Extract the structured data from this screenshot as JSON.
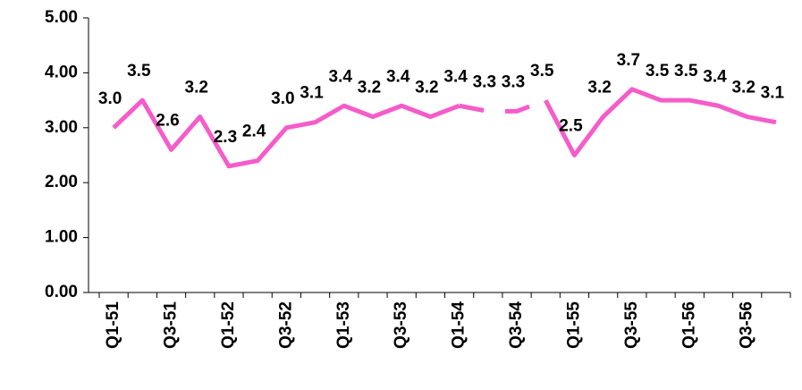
{
  "chart_data": {
    "type": "line",
    "categories": [
      "Q1-51",
      null,
      "Q3-51",
      null,
      "Q1-52",
      null,
      "Q3-52",
      null,
      "Q1-53",
      null,
      "Q3-53",
      null,
      "Q1-54",
      null,
      "Q3-54",
      null,
      "Q1-55",
      null,
      "Q3-55",
      null,
      "Q1-56",
      null,
      "Q3-56",
      null
    ],
    "series": [
      {
        "color": "#f55cc9",
        "dashed": false,
        "values": [
          3.0,
          3.5,
          2.6,
          3.2,
          2.3,
          2.4,
          3.0,
          3.1,
          3.4,
          3.2,
          3.4,
          3.2,
          3.4,
          null,
          null,
          3.5,
          2.5,
          3.2,
          3.7,
          3.5,
          3.5,
          3.4,
          3.2,
          3.1
        ],
        "value_labels": [
          "3.0",
          "3.5",
          "2.6",
          "3.2",
          "2.3",
          "2.4",
          "3.0",
          "3.1",
          "3.4",
          "3.2",
          "3.4",
          "3.2",
          "3.4",
          null,
          null,
          "3.5",
          "2.5",
          "3.2",
          "3.7",
          "3.5",
          "3.5",
          "3.4",
          "3.2",
          "3.1"
        ]
      },
      {
        "color": "#f55cc9",
        "dashed": true,
        "values": [
          null,
          null,
          null,
          null,
          null,
          null,
          null,
          null,
          null,
          null,
          null,
          null,
          3.4,
          3.3,
          3.3,
          3.5,
          null,
          null,
          null,
          null,
          null,
          null,
          null,
          null
        ],
        "value_labels": [
          null,
          null,
          null,
          null,
          null,
          null,
          null,
          null,
          null,
          null,
          null,
          null,
          null,
          "3.3",
          "3.3",
          null,
          null,
          null,
          null,
          null,
          null,
          null,
          null,
          null
        ]
      }
    ],
    "ylim": [
      0,
      5
    ],
    "yticks": [
      {
        "value": 0,
        "label": "0.00"
      },
      {
        "value": 1,
        "label": "1.00"
      },
      {
        "value": 2,
        "label": "2.00"
      },
      {
        "value": 3,
        "label": "3.00"
      },
      {
        "value": 4,
        "label": "4.00"
      },
      {
        "value": 5,
        "label": "5.00"
      }
    ],
    "grid": false
  }
}
